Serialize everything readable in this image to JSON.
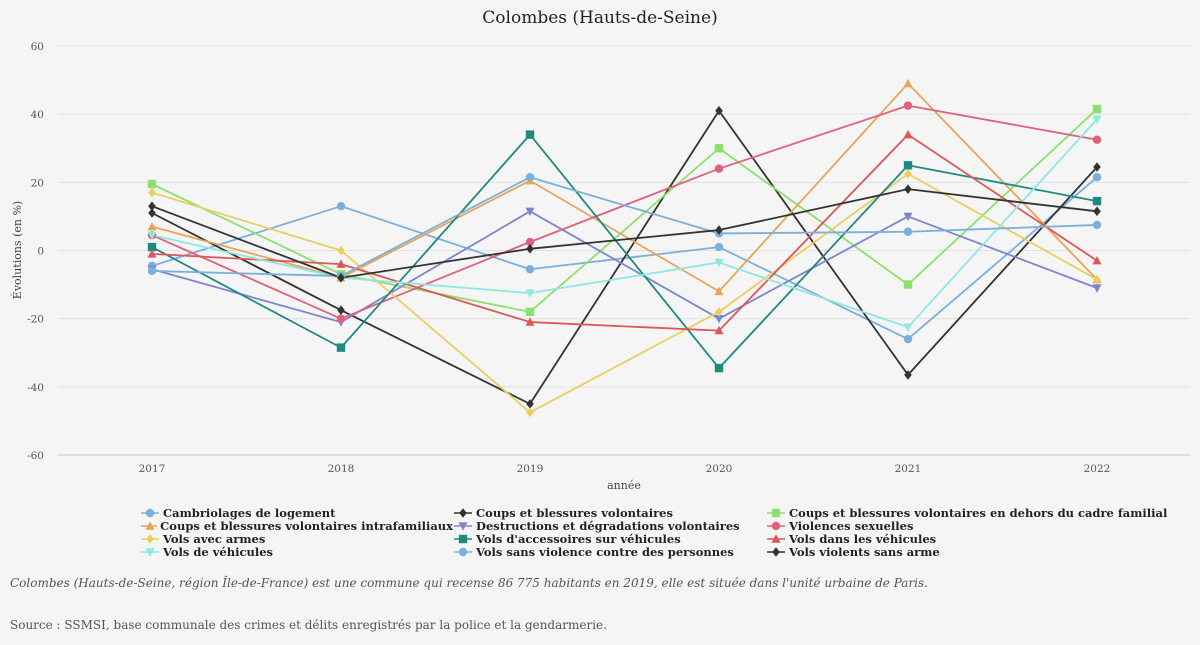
{
  "chart_data": {
    "type": "line",
    "title": "Colombes (Hauts-de-Seine)",
    "xlabel": "année",
    "ylabel": "Évolutions (en %)",
    "ylim": [
      -60,
      65
    ],
    "yticks": [
      -60,
      -40,
      -20,
      0,
      20,
      40,
      60
    ],
    "x": [
      "2017",
      "2018",
      "2019",
      "2020",
      "2021",
      "2022"
    ],
    "grid": "horizontal",
    "legend_position": "bottom",
    "series": [
      {
        "name": "Cambriolages de logement",
        "color": "#7ab0dc",
        "marker": "circle",
        "values": [
          -4.5,
          13,
          -5.5,
          1,
          -26,
          21.5
        ]
      },
      {
        "name": "Coups et blessures volontaires",
        "color": "#333333",
        "marker": "diamond",
        "values": [
          11,
          -17.5,
          -45,
          41,
          -36.5,
          24.5
        ]
      },
      {
        "name": "Coups et blessures volontaires en dehors du cadre familial",
        "color": "#8ee06e",
        "marker": "square",
        "values": [
          19.5,
          -7,
          -18,
          30,
          -10,
          41.5
        ]
      },
      {
        "name": "Coups et blessures volontaires intrafamiliaux",
        "color": "#e8a55a",
        "marker": "triangle-up",
        "values": [
          7,
          -8,
          20.5,
          -12,
          49,
          -8.5
        ]
      },
      {
        "name": "Destructions et dégradations volontaires",
        "color": "#7e85cc",
        "marker": "triangle-down",
        "values": [
          -5.5,
          -21,
          11.5,
          -20,
          10,
          -11
        ]
      },
      {
        "name": "Violences sexuelles",
        "color": "#e0607e",
        "marker": "circle",
        "values": [
          4.5,
          -20,
          2.5,
          24,
          42.5,
          32.5
        ]
      },
      {
        "name": "Vols avec armes",
        "color": "#e8d060",
        "marker": "diamond",
        "values": [
          17,
          0,
          -47.5,
          -18,
          22.5,
          -8.5
        ]
      },
      {
        "name": "Vols d'accessoires sur véhicules",
        "color": "#1f8a80",
        "marker": "square",
        "values": [
          1,
          -28.5,
          34,
          -34.5,
          25,
          14.5
        ]
      },
      {
        "name": "Vols dans les véhicules",
        "color": "#dc5858",
        "marker": "triangle-up",
        "values": [
          -1,
          -4,
          -21,
          -23.5,
          34,
          -3
        ]
      },
      {
        "name": "Vols de véhicules",
        "color": "#8ee8e0",
        "marker": "triangle-down",
        "values": [
          4.5,
          -8,
          -12.5,
          -3.5,
          -22.5,
          38.5
        ]
      },
      {
        "name": "Vols sans violence contre des personnes",
        "color": "#7ab0dc",
        "marker": "circle",
        "values": [
          -6,
          -7.5,
          21.5,
          5,
          5.5,
          7.5
        ]
      },
      {
        "name": "Vols violents sans arme",
        "color": "#333333",
        "marker": "diamond",
        "values": [
          13,
          -8,
          0.5,
          6,
          18,
          11.5
        ]
      }
    ]
  },
  "footer": {
    "note": "Colombes (Hauts-de-Seine, région Île-de-France) est une commune qui recense 86 775 habitants en 2019, elle est située dans l'unité urbaine de Paris.",
    "source": "Source : SSMSI, base communale des crimes et délits enregistrés par la police et la gendarmerie."
  }
}
